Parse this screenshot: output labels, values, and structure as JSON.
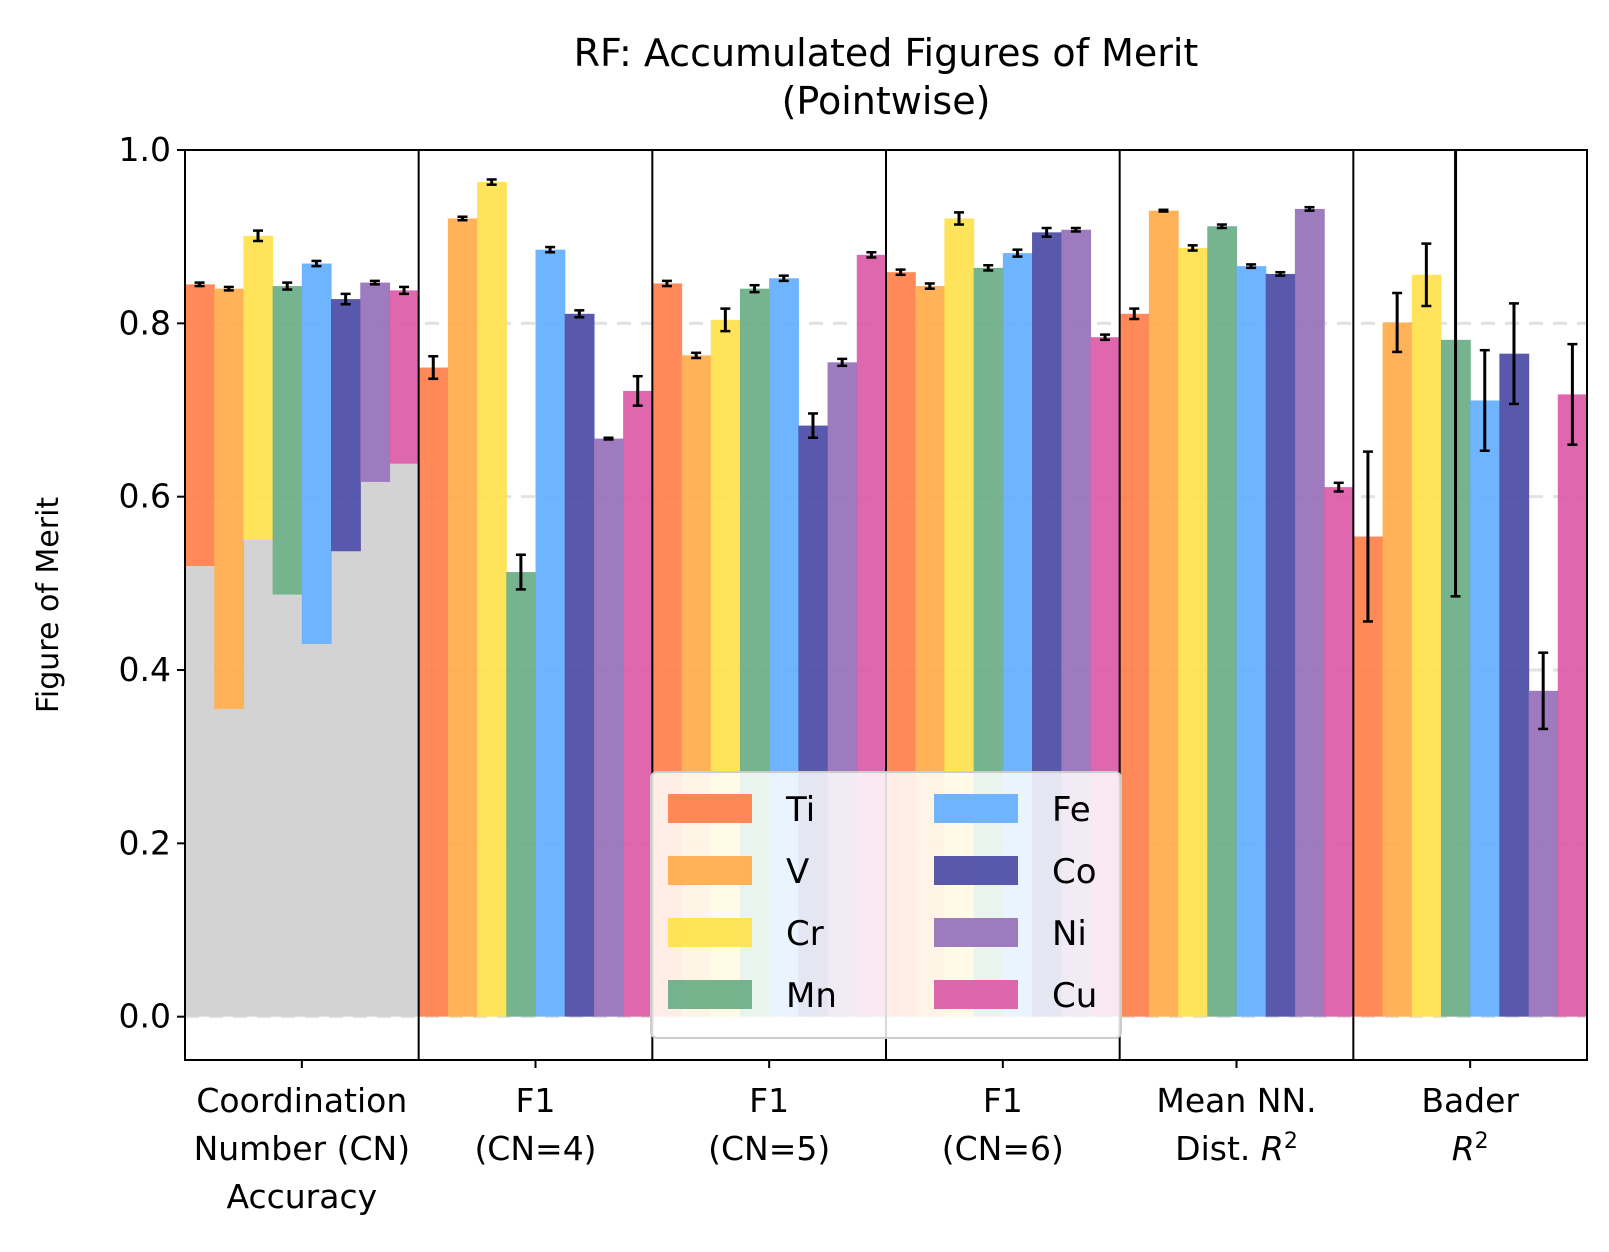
{
  "chart_data": {
    "type": "bar",
    "title_lines": [
      "RF: Accumulated Figures of Merit",
      "(Pointwise)"
    ],
    "ylabel": "Figure of Merit",
    "ylim": [
      -0.05,
      1.0
    ],
    "yticks": [
      0.0,
      0.2,
      0.4,
      0.6,
      0.8,
      1.0
    ],
    "ytick_labels": [
      "0.0",
      "0.2",
      "0.4",
      "0.6",
      "0.8",
      "1.0"
    ],
    "grid": "horizontal dashed",
    "legend_position": "lower center",
    "categories": [
      {
        "lines": [
          {
            "t": "Coordination"
          },
          {
            "t": "Number (CN)"
          },
          {
            "t": "Accuracy"
          }
        ]
      },
      {
        "lines": [
          {
            "t": "F1"
          },
          {
            "t": "(CN=4)"
          }
        ]
      },
      {
        "lines": [
          {
            "t": "F1"
          },
          {
            "t": "(CN=5)"
          }
        ]
      },
      {
        "lines": [
          {
            "t": "F1"
          },
          {
            "t": "(CN=6)"
          }
        ]
      },
      {
        "lines": [
          {
            "t": "Mean NN."
          },
          {
            "t": "Dist. ",
            "it": "R",
            "sup": "2"
          }
        ]
      },
      {
        "lines": [
          {
            "t": "Bader"
          },
          {
            "t": "",
            "it": "R",
            "sup": "2"
          }
        ]
      }
    ],
    "baseline": {
      "category_index": 0,
      "color": "#d3d3d3",
      "values": [
        0.52,
        0.355,
        0.55,
        0.487,
        0.43,
        0.537,
        0.617,
        0.638
      ]
    },
    "series": [
      {
        "name": "Ti",
        "color": "#ff7f4a",
        "values": [
          0.845,
          0.749,
          0.846,
          0.859,
          0.811,
          0.554
        ],
        "errors": [
          0.002,
          0.013,
          0.003,
          0.003,
          0.006,
          0.098
        ]
      },
      {
        "name": "V",
        "color": "#ffab4a",
        "values": [
          0.84,
          0.921,
          0.763,
          0.843,
          0.93,
          0.801
        ],
        "errors": [
          0.002,
          0.002,
          0.003,
          0.003,
          0.001,
          0.034
        ]
      },
      {
        "name": "Cr",
        "color": "#ffe14c",
        "values": [
          0.901,
          0.963,
          0.804,
          0.921,
          0.887,
          0.856
        ],
        "errors": [
          0.006,
          0.003,
          0.013,
          0.007,
          0.003,
          0.036
        ]
      },
      {
        "name": "Mn",
        "color": "#6aad85",
        "values": [
          0.843,
          0.513,
          0.84,
          0.864,
          0.912,
          0.781
        ],
        "errors": [
          0.004,
          0.02,
          0.004,
          0.003,
          0.002,
          0.296
        ]
      },
      {
        "name": "Fe",
        "color": "#63aeff",
        "values": [
          0.869,
          0.885,
          0.852,
          0.881,
          0.866,
          0.711
        ],
        "errors": [
          0.003,
          0.003,
          0.003,
          0.004,
          0.002,
          0.058
        ]
      },
      {
        "name": "Co",
        "color": "#4a4ba6",
        "values": [
          0.828,
          0.811,
          0.682,
          0.905,
          0.857,
          0.765
        ],
        "errors": [
          0.006,
          0.004,
          0.014,
          0.005,
          0.002,
          0.058
        ]
      },
      {
        "name": "Ni",
        "color": "#9670b8",
        "values": [
          0.847,
          0.667,
          0.755,
          0.908,
          0.932,
          0.376
        ],
        "errors": [
          0.002,
          0.001,
          0.004,
          0.002,
          0.002,
          0.044
        ]
      },
      {
        "name": "Cu",
        "color": "#db5aa6",
        "values": [
          0.838,
          0.722,
          0.879,
          0.784,
          0.611,
          0.718
        ],
        "errors": [
          0.004,
          0.017,
          0.003,
          0.003,
          0.005,
          0.058
        ]
      }
    ]
  }
}
